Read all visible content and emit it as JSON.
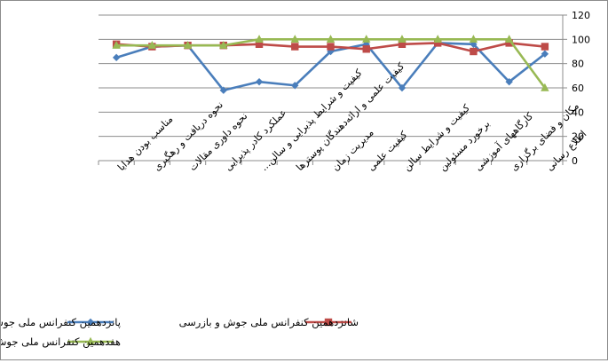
{
  "chart_data": {
    "type": "line",
    "title": "",
    "xlabel": "",
    "ylabel": "",
    "ylim": [
      0,
      120
    ],
    "yticks": [
      0,
      20,
      40,
      60,
      80,
      100,
      120
    ],
    "y_axis_side": "right",
    "x_direction": "right-to-left",
    "grid": "horizontal major gridlines",
    "legend_position": "bottom",
    "categories": [
      "اطلاع رسانی",
      "مکان و فضای برگزاری",
      "کارگاههای آموزشی",
      "برخورد مسئولین",
      "کیفیت و شرایط سالن",
      "کیفیت علمی",
      "مدیریت زمان",
      "کیفیت علمی و ارائه‌دهندگان پوسترها",
      "کیفیت و شرایط پذیرایی و سالن...",
      "عملکرد کادر پذیرایی",
      "نحوه داوری مقالات",
      "نحوه دریافت و رهگیری",
      "مناسب بودن هدایا"
    ],
    "series": [
      {
        "name": "پانزدهمین کنفرانس ملی جوش و بازرسی",
        "color": "#4a7ebb",
        "marker": "diamond",
        "values": [
          88,
          65,
          96,
          97,
          60,
          96,
          90,
          62,
          65,
          58,
          95,
          94,
          85
        ]
      },
      {
        "name": "شانزدهمین کنفرانس ملی جوش و بازرسی",
        "color": "#be4b48",
        "marker": "square",
        "values": [
          94,
          97,
          90,
          97,
          96,
          92,
          94,
          94,
          96,
          95,
          95,
          94,
          96
        ]
      },
      {
        "name": "هفدهمین کنفرانس ملی جوش و بازرسی",
        "color": "#98b954",
        "marker": "triangle",
        "values": [
          60,
          100,
          100,
          100,
          100,
          100,
          100,
          100,
          100,
          95,
          95,
          95,
          95
        ]
      }
    ]
  }
}
